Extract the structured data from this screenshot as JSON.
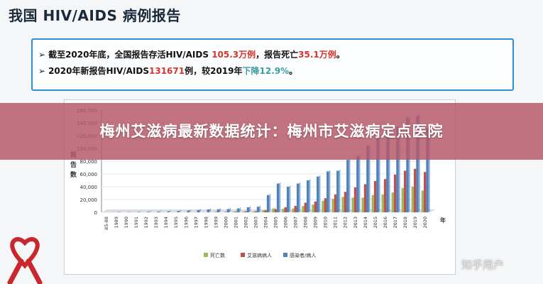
{
  "slide": {
    "title": "我国 HIV/AIDS 病例报告",
    "line1": {
      "p1": "截至2020年底，全国报告存活HIV/AIDS ",
      "v1": "105.3万例",
      "p2": "，报告死亡",
      "v2": "35.1万例",
      "p3": "。"
    },
    "line2": {
      "p1": "2020年新报告HIV/AIDS",
      "v1": "131671",
      "p2": "例，较2019年",
      "v2": "下降12.9%",
      "p3": "。"
    }
  },
  "banner": {
    "text": "梅州艾滋病最新数据统计：梅州市艾滋病定点医院"
  },
  "watermark": {
    "text": "知乎用户"
  },
  "colors": {
    "deaths": "#9bbb59",
    "aids": "#c0504d",
    "infected": "#4f81bd",
    "box_border": "#2d8fd2",
    "banner": "#b65869"
  },
  "chart_data": {
    "type": "bar",
    "xlabel": "年",
    "ylabel_chars": [
      "报",
      "告",
      "数"
    ],
    "ylim": [
      0,
      160000
    ],
    "yticks": [
      "0",
      "20,000",
      "40,000",
      "60,000",
      "80,000",
      "100,000",
      "120,000",
      "140,000",
      "160,000"
    ],
    "categories": [
      "85-88",
      "1989",
      "1990",
      "1991",
      "1992",
      "1993",
      "1994",
      "1995",
      "1996",
      "1997",
      "1998",
      "1999",
      "2000",
      "2001",
      "2002",
      "2003",
      "2004",
      "2005",
      "2006",
      "2007",
      "2008",
      "2009",
      "2010",
      "2011",
      "2012",
      "2013",
      "2014",
      "2015",
      "2016",
      "2017",
      "2018",
      "2019",
      "2020"
    ],
    "series": [
      {
        "name": "死亡数",
        "key": "deaths",
        "values": [
          0,
          0,
          0,
          0,
          0,
          0,
          0,
          0,
          0,
          0,
          0,
          0,
          0,
          500,
          700,
          1000,
          3000,
          6000,
          5500,
          6000,
          9700,
          12000,
          18000,
          21000,
          24000,
          23000,
          23000,
          27000,
          28000,
          31000,
          38000,
          40000,
          34000
        ]
      },
      {
        "name": "艾滋病病人",
        "key": "aids",
        "values": [
          0,
          0,
          0,
          0,
          0,
          0,
          0,
          0,
          0,
          0,
          0,
          500,
          600,
          1000,
          1500,
          1500,
          3000,
          4800,
          8000,
          10000,
          15000,
          17000,
          22000,
          28000,
          32000,
          39000,
          44000,
          49000,
          52000,
          59000,
          65000,
          68000,
          63000
        ]
      },
      {
        "name": "感染者/病人",
        "key": "infected",
        "values": [
          100,
          500,
          400,
          700,
          1000,
          1200,
          1500,
          2000,
          2700,
          3500,
          4500,
          4700,
          5000,
          6000,
          7800,
          8700,
          27000,
          45000,
          40000,
          45000,
          50000,
          56000,
          64000,
          65000,
          82000,
          88000,
          104000,
          115000,
          124000,
          134000,
          148000,
          151000,
          131671
        ]
      }
    ]
  }
}
